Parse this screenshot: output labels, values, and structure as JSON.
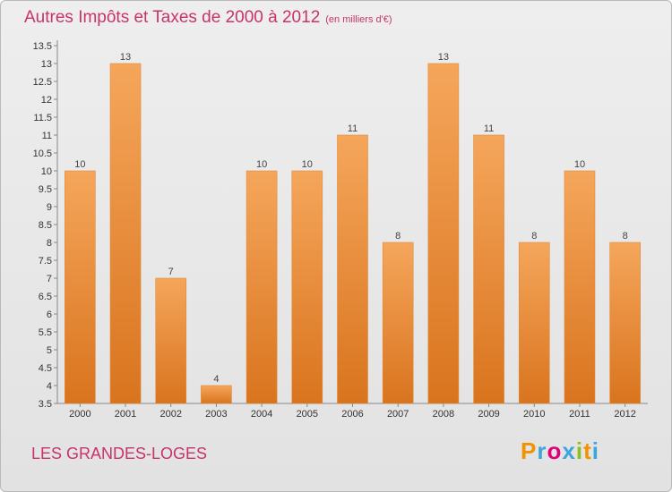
{
  "chart_data": {
    "type": "bar",
    "title": "Autres Impôts et Taxes de 2000 à 2012",
    "unit": "(en milliers d'€)",
    "categories": [
      "2000",
      "2001",
      "2002",
      "2003",
      "2004",
      "2005",
      "2006",
      "2007",
      "2008",
      "2009",
      "2010",
      "2011",
      "2012"
    ],
    "values": [
      10,
      13,
      7,
      4,
      10,
      10,
      11,
      8,
      13,
      11,
      8,
      10,
      8
    ],
    "value_labels": [
      "10",
      "13",
      "7",
      "4",
      "10",
      "10",
      "11",
      "8",
      "13",
      "11",
      "8",
      "10",
      "8"
    ],
    "ylim": [
      3.5,
      13.5
    ],
    "yticks": [
      3.5,
      4,
      4.5,
      5,
      5.5,
      6,
      6.5,
      7,
      7.5,
      8,
      8.5,
      9,
      9.5,
      10,
      10.5,
      11,
      11.5,
      12,
      12.5,
      13,
      13.5
    ],
    "ytick_labels": [
      "3.5",
      "4",
      "4.5",
      "5",
      "5.5",
      "6",
      "6.5",
      "7",
      "7.5",
      "8",
      "8.5",
      "9",
      "9.5",
      "10",
      "10.5",
      "11",
      "11.5",
      "12",
      "12.5",
      "13",
      "13.5"
    ],
    "xlabel": "",
    "ylabel": "",
    "grid": false,
    "bar_color_top": "#f5a65b",
    "bar_color_bottom": "#d9741e"
  },
  "commune": "LES GRANDES-LOGES",
  "logo": {
    "text": "Proxiti",
    "letters": [
      "P",
      "r",
      "o",
      "x",
      "i",
      "t",
      "i"
    ],
    "colors": [
      "#f39200",
      "#3aa6dd",
      "#e2007a",
      "#3aa6dd",
      "#8cbf26",
      "#f39200",
      "#3aa6dd"
    ]
  },
  "colors": {
    "title": "#c8336b",
    "axis": "#888888"
  }
}
